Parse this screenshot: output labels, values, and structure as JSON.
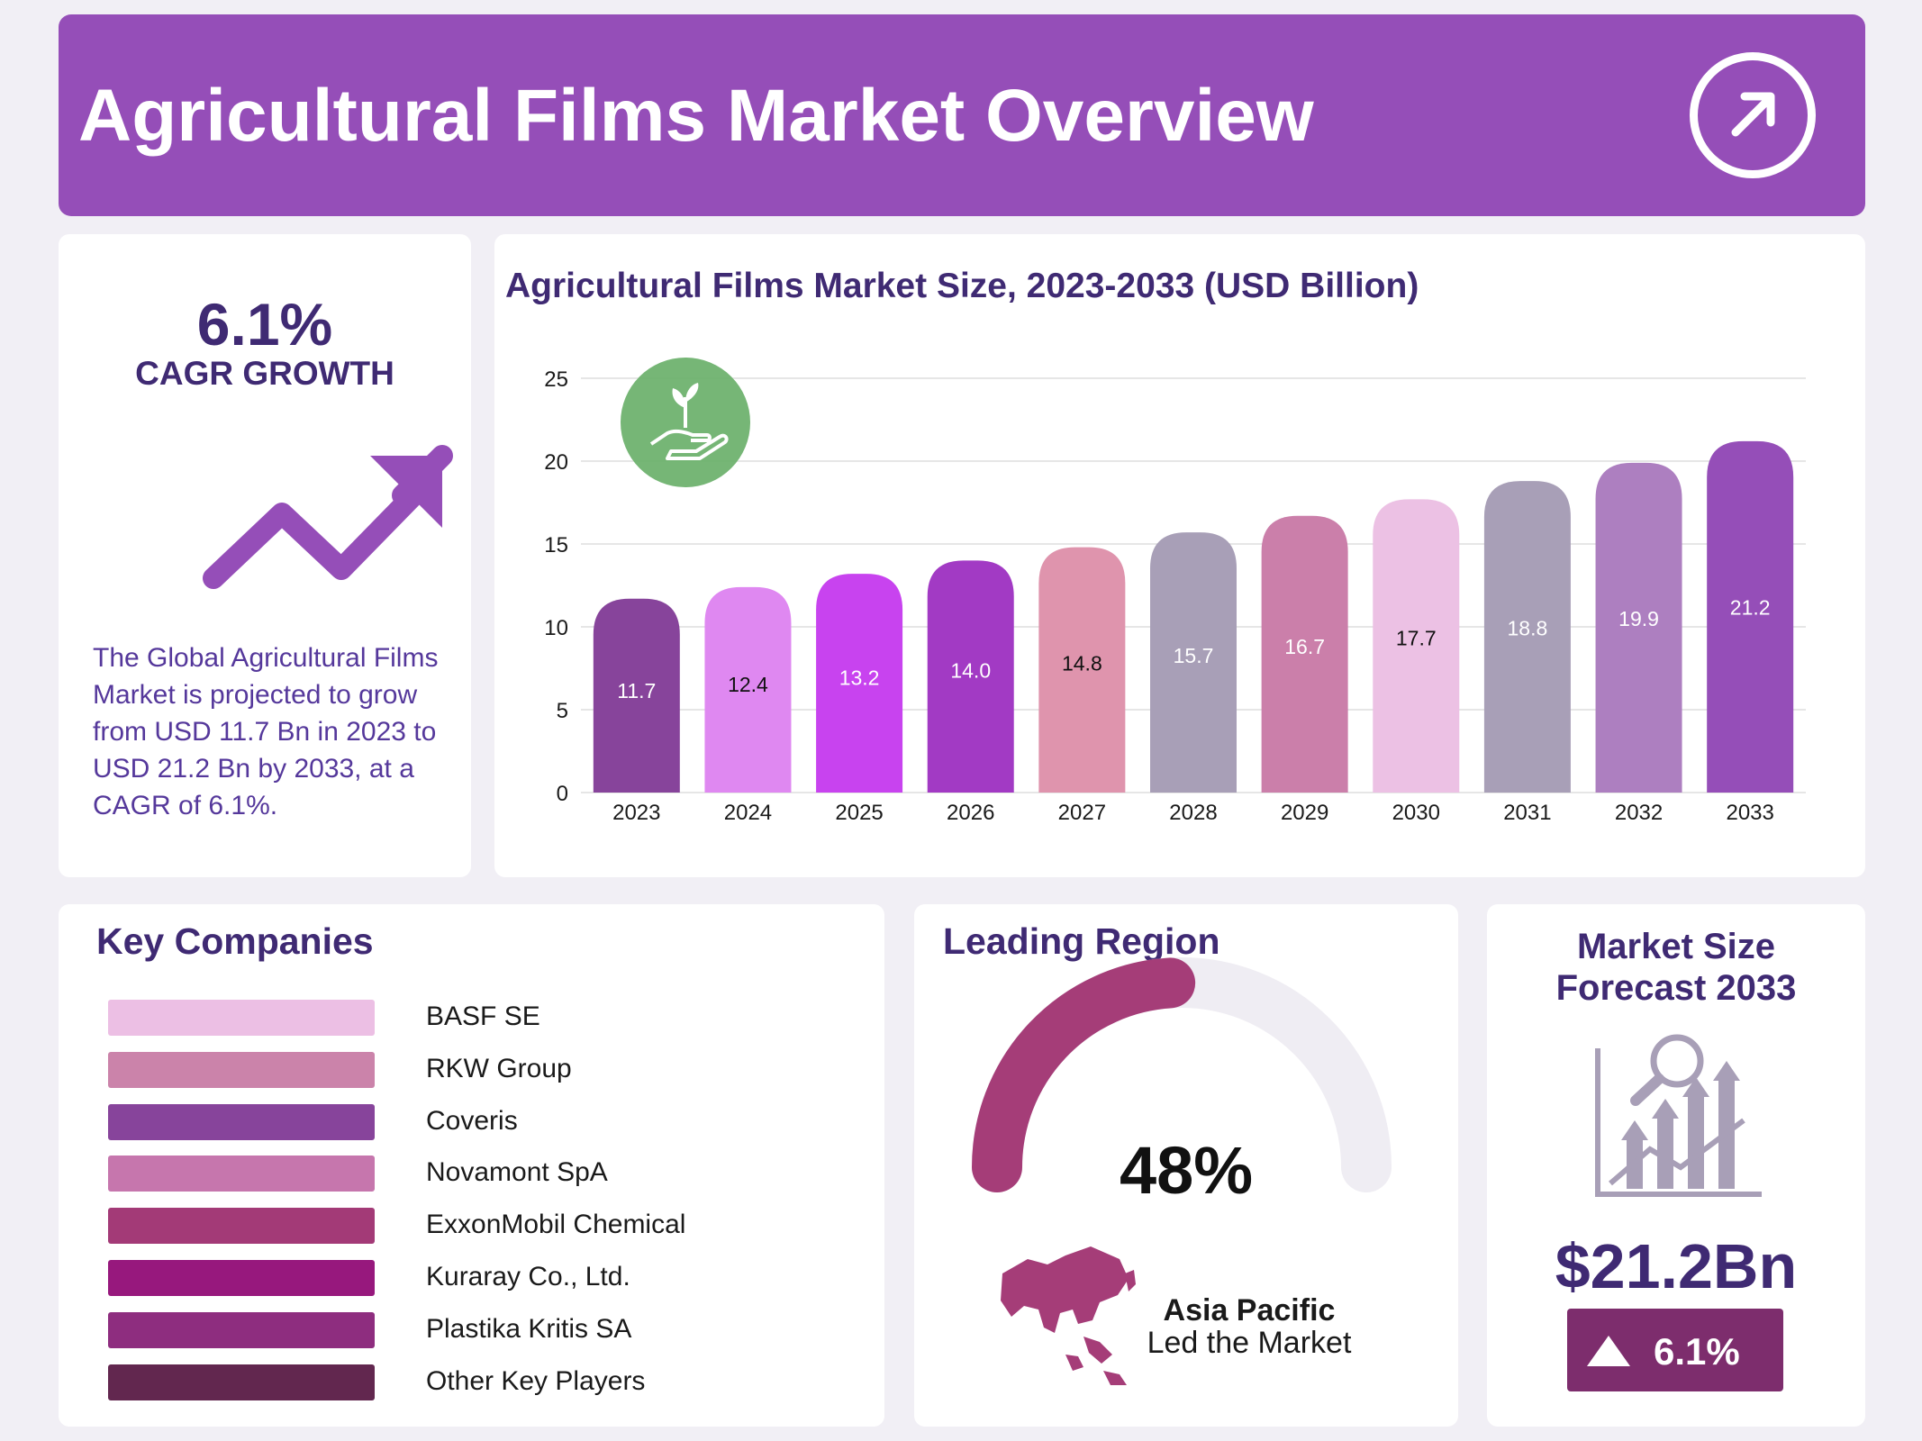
{
  "header": {
    "title": "Agricultural Films Market Overview"
  },
  "cagr": {
    "value": "6.1%",
    "label": "CAGR GROWTH",
    "description": "The Global Agricultural Films Market is projected to grow from USD 11.7 Bn in 2023 to USD 21.2 Bn by 2033, at a CAGR of 6.1%."
  },
  "chart_data": {
    "type": "bar",
    "title": "Agricultural Films Market Size, 2023-2033 (USD Billion)",
    "xlabel": "",
    "ylabel": "",
    "ylim": [
      0,
      25
    ],
    "yticks": [
      0,
      5,
      10,
      15,
      20,
      25
    ],
    "grid": true,
    "categories": [
      "2023",
      "2024",
      "2025",
      "2026",
      "2027",
      "2028",
      "2029",
      "2030",
      "2031",
      "2032",
      "2033"
    ],
    "values": [
      11.7,
      12.4,
      13.2,
      14.0,
      14.8,
      15.7,
      16.7,
      17.7,
      18.8,
      19.9,
      21.2
    ],
    "value_labels": [
      "11.7",
      "12.4",
      "13.2",
      "14.0",
      "14.8",
      "15.7",
      "16.7",
      "17.7",
      "18.8",
      "19.9",
      "21.2"
    ],
    "colors": [
      "#87449b",
      "#df88f1",
      "#c843ef",
      "#a23ac4",
      "#df94ad",
      "#a89fb7",
      "#cb7faa",
      "#ecc1e4",
      "#a89fb7",
      "#ad7fc0",
      "#954eb8"
    ],
    "label_colors": [
      "#ffffff",
      "#111111",
      "#ffffff",
      "#ffffff",
      "#111111",
      "#ffffff",
      "#ffffff",
      "#111111",
      "#ffffff",
      "#ffffff",
      "#ffffff"
    ]
  },
  "companies": {
    "title": "Key Companies",
    "items": [
      {
        "name": "BASF SE",
        "color": "#ecbfe4"
      },
      {
        "name": "RKW Group",
        "color": "#cb83aa"
      },
      {
        "name": "Coveris",
        "color": "#87449b"
      },
      {
        "name": "Novamont SpA",
        "color": "#c676ad"
      },
      {
        "name": "ExxonMobil Chemical",
        "color": "#a33a77"
      },
      {
        "name": "Kuraray Co., Ltd.",
        "color": "#97187d"
      },
      {
        "name": "Plastika Kritis SA",
        "color": "#8e2d7f"
      },
      {
        "name": "Other Key Players",
        "color": "#62274f"
      }
    ]
  },
  "region": {
    "title": "Leading Region",
    "share": 48,
    "share_label": "48%",
    "name": "Asia Pacific",
    "note": "Led the Market",
    "color": "#a53d78",
    "track_color": "#efedf3"
  },
  "forecast": {
    "title_line1": "Market Size",
    "title_line2": "Forecast 2033",
    "value": "$21.2Bn",
    "growth": "6.1%"
  }
}
